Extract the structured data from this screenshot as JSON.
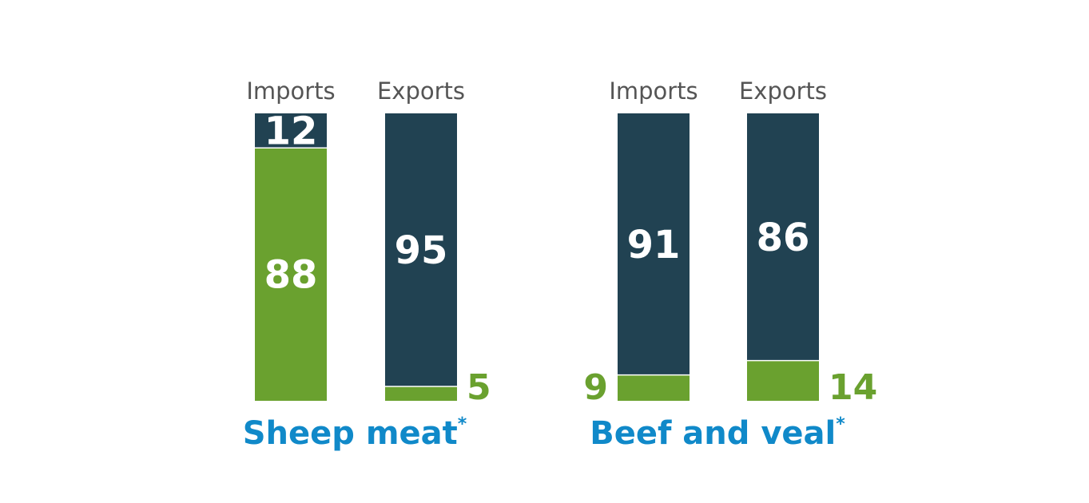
{
  "colors": {
    "dark": "#214252",
    "green": "#6aa12f",
    "group": "#1089c9"
  },
  "chart_data": {
    "type": "bar",
    "stacked": true,
    "ylim": [
      0,
      100
    ],
    "groups": [
      {
        "label": "Sheep meat",
        "marker": "*",
        "bars": [
          {
            "label": "Imports",
            "green": 88,
            "dark": 12
          },
          {
            "label": "Exports",
            "green": 5,
            "dark": 95
          }
        ]
      },
      {
        "label": "Beef and veal",
        "marker": "*",
        "bars": [
          {
            "label": "Imports",
            "green": 9,
            "dark": 91
          },
          {
            "label": "Exports",
            "green": 14,
            "dark": 86
          }
        ]
      }
    ]
  }
}
